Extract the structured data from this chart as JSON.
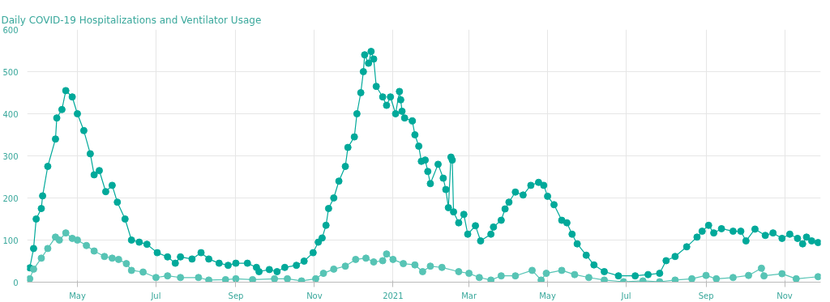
{
  "chart_data": {
    "type": "line",
    "title": "Daily COVID-19 Hospitalizations and Ventilator Usage",
    "marker": "circle",
    "grid": true,
    "xlim": [
      "2020-03-23",
      "2021-11-29"
    ],
    "xticks": [
      {
        "value": "2020-05-01",
        "label": "May"
      },
      {
        "value": "2020-07-01",
        "label": "Jul"
      },
      {
        "value": "2020-09-01",
        "label": "Sep"
      },
      {
        "value": "2020-11-01",
        "label": "Nov"
      },
      {
        "value": "2021-01-01",
        "label": "2021"
      },
      {
        "value": "2021-03-01",
        "label": "Mar"
      },
      {
        "value": "2021-05-01",
        "label": "May"
      },
      {
        "value": "2021-07-01",
        "label": "Jul"
      },
      {
        "value": "2021-09-01",
        "label": "Sep"
      },
      {
        "value": "2021-11-01",
        "label": "Nov"
      }
    ],
    "ylim": [
      0,
      600
    ],
    "yticks": [
      0,
      100,
      200,
      300,
      400,
      500,
      600
    ],
    "series": [
      {
        "color": "#00a99a",
        "x": [
          "2020-03-25",
          "2020-03-28",
          "2020-03-30",
          "2020-04-03",
          "2020-04-04",
          "2020-04-08",
          "2020-04-14",
          "2020-04-15",
          "2020-04-19",
          "2020-04-22",
          "2020-04-27",
          "2020-05-01",
          "2020-05-06",
          "2020-05-11",
          "2020-05-14",
          "2020-05-18",
          "2020-05-23",
          "2020-05-28",
          "2020-06-01",
          "2020-06-07",
          "2020-06-12",
          "2020-06-18",
          "2020-06-24",
          "2020-07-02",
          "2020-07-10",
          "2020-07-16",
          "2020-07-20",
          "2020-07-29",
          "2020-08-05",
          "2020-08-11",
          "2020-08-19",
          "2020-08-26",
          "2020-09-01",
          "2020-09-10",
          "2020-09-17",
          "2020-09-19",
          "2020-09-27",
          "2020-10-03",
          "2020-10-09",
          "2020-10-18",
          "2020-10-24",
          "2020-10-31",
          "2020-11-04",
          "2020-11-07",
          "2020-11-10",
          "2020-11-12",
          "2020-11-16",
          "2020-11-20",
          "2020-11-25",
          "2020-11-27",
          "2020-12-02",
          "2020-12-04",
          "2020-12-07",
          "2020-12-09",
          "2020-12-10",
          "2020-12-13",
          "2020-12-15",
          "2020-12-17",
          "2020-12-19",
          "2020-12-24",
          "2020-12-27",
          "2020-12-30",
          "2021-01-03",
          "2021-01-06",
          "2021-01-07",
          "2021-01-08",
          "2021-01-10",
          "2021-01-16",
          "2021-01-18",
          "2021-01-21",
          "2021-01-23",
          "2021-01-26",
          "2021-01-28",
          "2021-01-30",
          "2021-02-05",
          "2021-02-09",
          "2021-02-11",
          "2021-02-13",
          "2021-02-15",
          "2021-02-16",
          "2021-02-17",
          "2021-02-21",
          "2021-02-25",
          "2021-02-28",
          "2021-03-06",
          "2021-03-10",
          "2021-03-18",
          "2021-03-20",
          "2021-03-26",
          "2021-03-29",
          "2021-04-01",
          "2021-04-06",
          "2021-04-12",
          "2021-04-18",
          "2021-04-24",
          "2021-04-28",
          "2021-05-01",
          "2021-05-06",
          "2021-05-12",
          "2021-05-16",
          "2021-05-20",
          "2021-05-24",
          "2021-05-31",
          "2021-06-06",
          "2021-06-14",
          "2021-06-25",
          "2021-07-08",
          "2021-07-18",
          "2021-07-27",
          "2021-08-01",
          "2021-08-08",
          "2021-08-17",
          "2021-08-25",
          "2021-08-29",
          "2021-09-03",
          "2021-09-07",
          "2021-09-13",
          "2021-09-22",
          "2021-09-28",
          "2021-10-02",
          "2021-10-09",
          "2021-10-17",
          "2021-10-23",
          "2021-10-30",
          "2021-11-05",
          "2021-11-11",
          "2021-11-15",
          "2021-11-18",
          "2021-11-22",
          "2021-11-27"
        ],
        "values": [
          34,
          80,
          150,
          175,
          205,
          275,
          340,
          390,
          410,
          455,
          440,
          400,
          360,
          305,
          255,
          265,
          215,
          230,
          190,
          150,
          100,
          95,
          90,
          70,
          60,
          45,
          60,
          55,
          70,
          55,
          45,
          40,
          45,
          45,
          35,
          25,
          30,
          25,
          35,
          40,
          50,
          70,
          95,
          105,
          135,
          175,
          200,
          240,
          275,
          320,
          345,
          400,
          450,
          500,
          540,
          520,
          548,
          530,
          465,
          440,
          420,
          440,
          400,
          453,
          433,
          406,
          390,
          383,
          350,
          323,
          287,
          290,
          263,
          234,
          280,
          247,
          220,
          177,
          297,
          290,
          167,
          141,
          161,
          114,
          134,
          98,
          114,
          131,
          147,
          174,
          190,
          214,
          207,
          230,
          237,
          230,
          204,
          184,
          147,
          141,
          114,
          91,
          64,
          41,
          25,
          15,
          15,
          18,
          21,
          51,
          61,
          84,
          107,
          121,
          135,
          117,
          127,
          121,
          121,
          98,
          126,
          111,
          117,
          104,
          114,
          104,
          91,
          107,
          98,
          94
        ]
      },
      {
        "color": "#57c4b5",
        "x": [
          "2020-03-25",
          "2020-03-28",
          "2020-04-03",
          "2020-04-08",
          "2020-04-14",
          "2020-04-17",
          "2020-04-22",
          "2020-04-27",
          "2020-05-01",
          "2020-05-08",
          "2020-05-14",
          "2020-05-22",
          "2020-05-28",
          "2020-06-02",
          "2020-06-08",
          "2020-06-12",
          "2020-06-21",
          "2020-07-01",
          "2020-07-10",
          "2020-07-20",
          "2020-08-03",
          "2020-08-11",
          "2020-08-24",
          "2020-09-01",
          "2020-09-14",
          "2020-10-01",
          "2020-10-11",
          "2020-10-22",
          "2020-11-02",
          "2020-11-08",
          "2020-11-16",
          "2020-11-25",
          "2020-12-03",
          "2020-12-11",
          "2020-12-17",
          "2020-12-24",
          "2020-12-27",
          "2021-01-01",
          "2021-01-09",
          "2021-01-18",
          "2021-01-24",
          "2021-01-30",
          "2021-02-08",
          "2021-02-21",
          "2021-03-01",
          "2021-03-09",
          "2021-03-18",
          "2021-03-26",
          "2021-04-06",
          "2021-04-19",
          "2021-04-26",
          "2021-04-30",
          "2021-05-12",
          "2021-05-22",
          "2021-06-02",
          "2021-06-14",
          "2021-06-29",
          "2021-07-14",
          "2021-07-27",
          "2021-08-08",
          "2021-08-21",
          "2021-09-01",
          "2021-09-09",
          "2021-09-22",
          "2021-10-04",
          "2021-10-14",
          "2021-10-16",
          "2021-10-30",
          "2021-11-10",
          "2021-11-27"
        ],
        "values": [
          8,
          31,
          57,
          80,
          107,
          100,
          117,
          104,
          100,
          87,
          74,
          61,
          57,
          54,
          44,
          28,
          24,
          11,
          15,
          11,
          11,
          5,
          6,
          8,
          6,
          8,
          8,
          3,
          8,
          21,
          31,
          38,
          54,
          57,
          48,
          51,
          67,
          54,
          44,
          41,
          25,
          38,
          35,
          25,
          21,
          11,
          5,
          15,
          15,
          28,
          5,
          21,
          28,
          18,
          11,
          5,
          1,
          3,
          1,
          5,
          8,
          16,
          8,
          11,
          16,
          33,
          15,
          20,
          8,
          13
        ]
      }
    ]
  }
}
